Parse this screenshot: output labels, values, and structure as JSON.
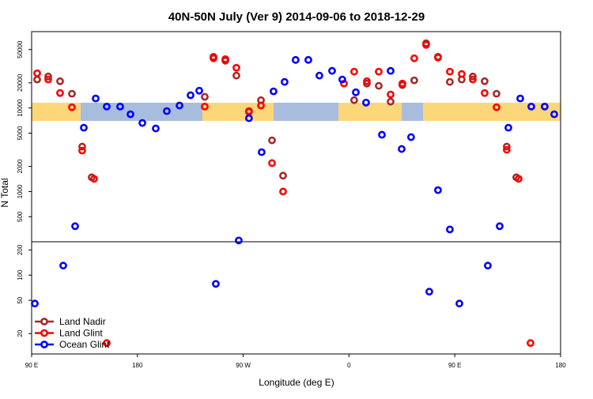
{
  "chart_data": {
    "type": "scatter",
    "title": "40N-50N July (Ver 9)   2014-09-06 to 2018-12-29",
    "x_label": "Longitude (deg E)",
    "y_label": "N Total",
    "yscale": "log",
    "xlim": [
      90,
      540
    ],
    "xticks": [
      {
        "value": 90,
        "label": "90 E"
      },
      180,
      {
        "value": 270,
        "label": "90 W"
      },
      {
        "value": 360,
        "label": "0"
      },
      {
        "value": 450,
        "label": "90 E"
      },
      {
        "value": 540,
        "label": "180"
      }
    ],
    "ylim": [
      11.4,
      82000
    ],
    "yticks": [
      20,
      50,
      100,
      200,
      500,
      1000,
      2000,
      5000,
      10000,
      20000,
      50000
    ],
    "legend": "lower left",
    "series": [
      {
        "name": "Land Nadir",
        "color": "#a52a2a",
        "x": [
          94.7,
          104.1,
          114.2,
          124.3,
          133.0,
          141.1,
          237.3,
          244.7,
          254.8,
          264.2,
          274.9,
          285.1,
          294.5,
          303.9,
          364.4,
          375.2,
          385.3,
          395.4,
          405.4,
          415.5,
          425.6,
          435.7,
          445.8,
          455.9,
          465.3,
          475.4,
          485.5,
          494.2,
          502.3
        ],
        "values": [
          21900,
          23800,
          20900,
          14800,
          3450,
          1480,
          13600,
          41000,
          36800,
          24400,
          8970,
          12400,
          4100,
          1550,
          12400,
          19600,
          18400,
          11900,
          18800,
          21400,
          59400,
          41000,
          20500,
          21900,
          23800,
          20900,
          14800,
          3450,
          1480
        ]
      },
      {
        "name": "Land Glint",
        "color": "#ff0000",
        "x": [
          94.7,
          104.1,
          114.2,
          124.3,
          133.0,
          143.1,
          153.9,
          237.3,
          244.7,
          254.8,
          264.2,
          274.9,
          285.1,
          294.5,
          303.9,
          355.7,
          364.4,
          375.2,
          385.3,
          395.4,
          405.4,
          415.5,
          425.6,
          435.7,
          445.8,
          455.9,
          465.3,
          475.4,
          485.5,
          494.2,
          504.3,
          514.4
        ],
        "values": [
          26000,
          21900,
          15100,
          10200,
          3090,
          1420,
          15.4,
          10400,
          39300,
          38400,
          30300,
          9170,
          10700,
          2190,
          1000,
          19600,
          27200,
          20900,
          27200,
          14500,
          19600,
          39300,
          56900,
          40100,
          27200,
          25500,
          21900,
          15100,
          10200,
          3160,
          1420,
          15.4
        ]
      },
      {
        "name": "Ocean Glint",
        "color": "#0000ff",
        "x": [
          92.7,
          116.9,
          127.0,
          134.4,
          144.5,
          153.9,
          165.3,
          174.1,
          184.2,
          195.6,
          205.0,
          215.8,
          225.2,
          232.6,
          246.7,
          266.2,
          274.9,
          285.7,
          295.8,
          305.2,
          314.6,
          325.4,
          334.8,
          345.6,
          354.3,
          365.8,
          374.5,
          388.0,
          395.4,
          404.8,
          412.8,
          428.3,
          435.7,
          445.8,
          453.9,
          478.1,
          488.2,
          495.6,
          505.7,
          515.1,
          526.5,
          534.6
        ],
        "values": [
          45.7,
          130,
          385,
          5810,
          13000,
          10400,
          10400,
          8410,
          6620,
          5690,
          9170,
          10700,
          14200,
          16100,
          78.7,
          260,
          7540,
          2960,
          15800,
          20500,
          37600,
          37600,
          24400,
          27800,
          21900,
          15400,
          11600,
          4780,
          27800,
          3230,
          4480,
          63.4,
          1040,
          352,
          45.7,
          130,
          385,
          5810,
          13000,
          10400,
          10400,
          8410
        ]
      }
    ]
  }
}
